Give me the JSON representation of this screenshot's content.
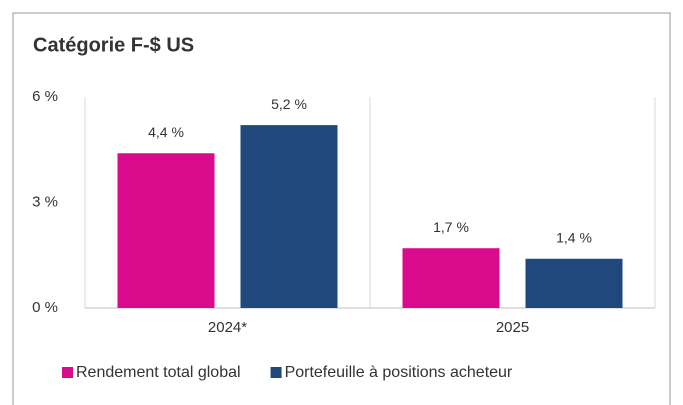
{
  "chart_data": {
    "type": "bar",
    "title": "Catégorie F-$ US",
    "categories": [
      "2024*",
      "2025"
    ],
    "series": [
      {
        "name": "Rendement total global",
        "color": "#d90a8c",
        "values": [
          4.4,
          1.7
        ],
        "value_labels": [
          "4,4 %",
          "1,7 %"
        ]
      },
      {
        "name": "Portefeuille à positions acheteur",
        "color": "#1f497d",
        "values": [
          5.2,
          1.4
        ],
        "value_labels": [
          "5,2 %",
          "1,4 %"
        ]
      }
    ],
    "ylim": [
      0,
      6
    ],
    "yticks": [
      {
        "value": 0,
        "label": "0 %"
      },
      {
        "value": 3,
        "label": "3 %"
      },
      {
        "value": 6,
        "label": "6 %"
      }
    ],
    "legend": "bottom"
  }
}
